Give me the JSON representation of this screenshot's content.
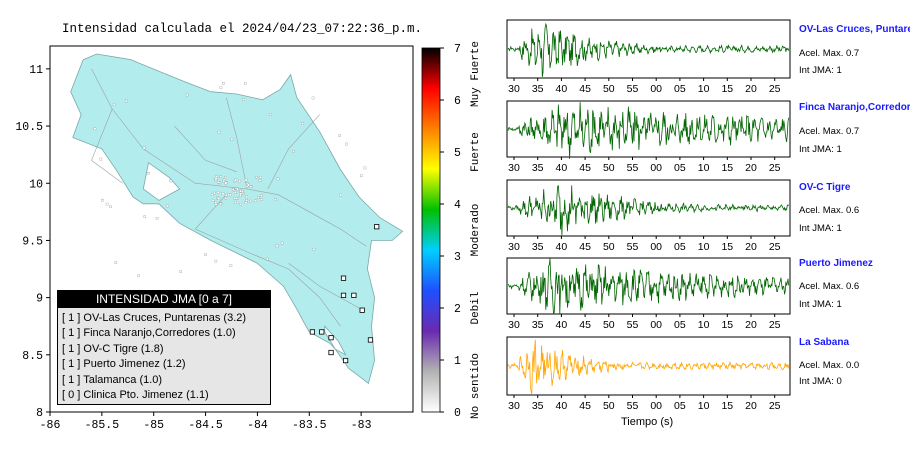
{
  "chart_data": [
    {
      "type": "map",
      "title": "Intensidad calculada el 2024/04/23_07:22:36_p.m.",
      "x_ticks": [
        -86,
        -85.5,
        -85,
        -84.5,
        -84,
        -83.5,
        -83
      ],
      "y_ticks": [
        8,
        8.5,
        9,
        9.5,
        10,
        10.5,
        11
      ],
      "xlim": [
        -86,
        -82.5
      ],
      "ylim": [
        8,
        11.2
      ],
      "colorbar": {
        "ticks": [
          0,
          1,
          2,
          3,
          4,
          5,
          6,
          7
        ],
        "range": [
          0,
          7
        ],
        "labels": [
          "No sentido",
          "Debil",
          "Moderado",
          "Fuerte",
          "Muy Fuerte"
        ],
        "colors": [
          "#ffffff",
          "#b3b3b3",
          "#6a2ab0",
          "#1f4fff",
          "#00cfff",
          "#00c000",
          "#ffff00",
          "#ff8000",
          "#ff0000",
          "#000000"
        ]
      },
      "legend": {
        "title": "INTENSIDAD JMA [0 a 7]",
        "items": [
          "[ 1 ]  OV-Las Cruces, Puntarenas (3.2)",
          "[ 1 ]  Finca Naranjo,Corredores (1.0)",
          "[ 1 ]  OV-C Tigre (1.8)",
          "[ 1 ]  Puerto Jimenez (1.2)",
          "[ 1 ]  Talamanca (1.0)",
          "[ 0 ]  Clinica Pto. Jimenez (1.1)"
        ]
      },
      "land_color": "#b3ecec",
      "station_markers": [
        {
          "lon": -82.85,
          "lat": 9.62
        },
        {
          "lon": -83.17,
          "lat": 9.17
        },
        {
          "lon": -83.07,
          "lat": 9.02
        },
        {
          "lon": -83.17,
          "lat": 9.02
        },
        {
          "lon": -82.99,
          "lat": 8.89
        },
        {
          "lon": -82.91,
          "lat": 8.63
        },
        {
          "lon": -83.47,
          "lat": 8.7
        },
        {
          "lon": -83.38,
          "lat": 8.7
        },
        {
          "lon": -83.29,
          "lat": 8.65
        },
        {
          "lon": -83.29,
          "lat": 8.52
        },
        {
          "lon": -83.15,
          "lat": 8.45
        }
      ]
    },
    {
      "type": "line",
      "xlabel": "Tiempo (s)",
      "x_tick_labels": [
        "30",
        "35",
        "40",
        "45",
        "50",
        "55",
        "00",
        "05",
        "10",
        "15",
        "20",
        "25"
      ],
      "series": [
        {
          "name": "OV-Las Cruces, Puntarenas",
          "acel_label": "Acel. Max. 0.7",
          "jma_label": "Int JMA: 1",
          "color": "#006400",
          "burst_center": 36,
          "envelope_decay": 12
        },
        {
          "name": "Finca Naranjo,Corredores",
          "acel_label": "Acel. Max. 0.7",
          "jma_label": "Int JMA: 1",
          "color": "#006400",
          "burst_center": 40,
          "envelope_decay": 60
        },
        {
          "name": "OV-C Tigre",
          "acel_label": "Acel. Max. 0.6",
          "jma_label": "Int JMA: 1",
          "color": "#006400",
          "burst_center": 40,
          "envelope_decay": 14
        },
        {
          "name": "Puerto Jimenez",
          "acel_label": "Acel. Max. 0.6",
          "jma_label": "Int JMA: 1",
          "color": "#006400",
          "burst_center": 38,
          "envelope_decay": 40
        },
        {
          "name": "La Sabana",
          "acel_label": "Acel. Max. 0.0",
          "jma_label": "Int JMA: 0",
          "color": "#ffa500",
          "burst_center": 34,
          "envelope_decay": 10
        }
      ]
    }
  ]
}
